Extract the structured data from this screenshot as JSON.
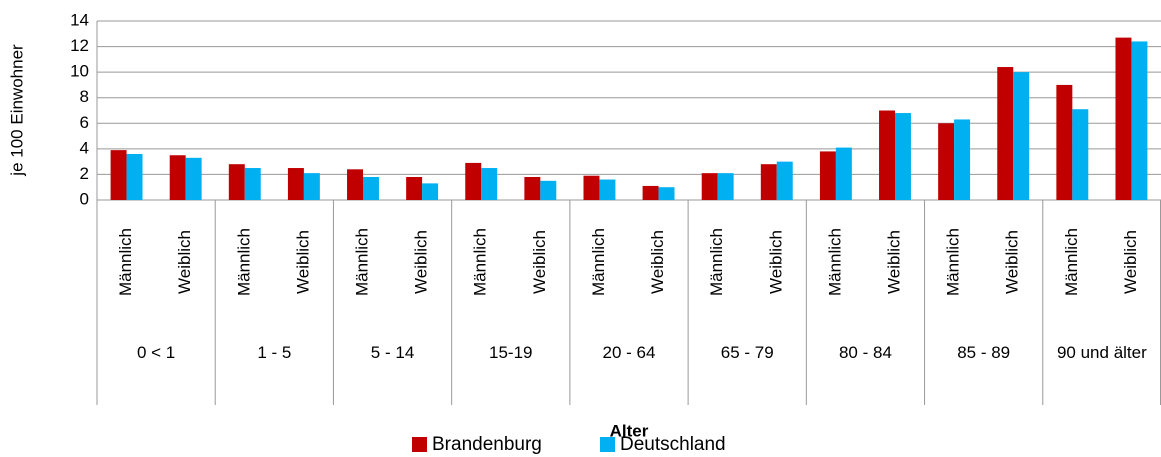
{
  "chart_data": {
    "type": "bar",
    "y_label": "je 100 Einwohner",
    "x_label": "Alter",
    "categories": [
      "Männlich",
      "Weiblich",
      "Männlich",
      "Weiblich",
      "Männlich",
      "Weiblich",
      "Männlich",
      "Weiblich",
      "Männlich",
      "Weiblich",
      "Männlich",
      "Weiblich",
      "Männlich",
      "Weiblich",
      "Männlich",
      "Weiblich",
      "Männlich",
      "Weiblich"
    ],
    "category_groups": [
      "0 < 1",
      "1 - 5",
      "5 - 14",
      "15-19",
      "20 - 64",
      "65 - 79",
      "80 - 84",
      "85 - 89",
      "90 und älter"
    ],
    "series": [
      {
        "name": "Brandenburg",
        "color": "#c00000",
        "values": [
          3.9,
          3.5,
          2.8,
          2.5,
          2.4,
          1.8,
          2.9,
          1.8,
          1.9,
          1.1,
          2.1,
          2.8,
          3.8,
          7.0,
          6.0,
          10.4,
          9.0,
          12.7
        ]
      },
      {
        "name": "Deutschland",
        "color": "#00b0f0",
        "values": [
          3.6,
          3.3,
          2.5,
          2.1,
          1.8,
          1.3,
          2.5,
          1.5,
          1.6,
          1.0,
          2.1,
          3.0,
          4.1,
          6.8,
          6.3,
          10.0,
          7.1,
          12.4
        ]
      }
    ],
    "ylim": [
      0,
      14
    ],
    "yticks": [
      0,
      2,
      4,
      6,
      8,
      10,
      12,
      14
    ],
    "grid": true
  }
}
